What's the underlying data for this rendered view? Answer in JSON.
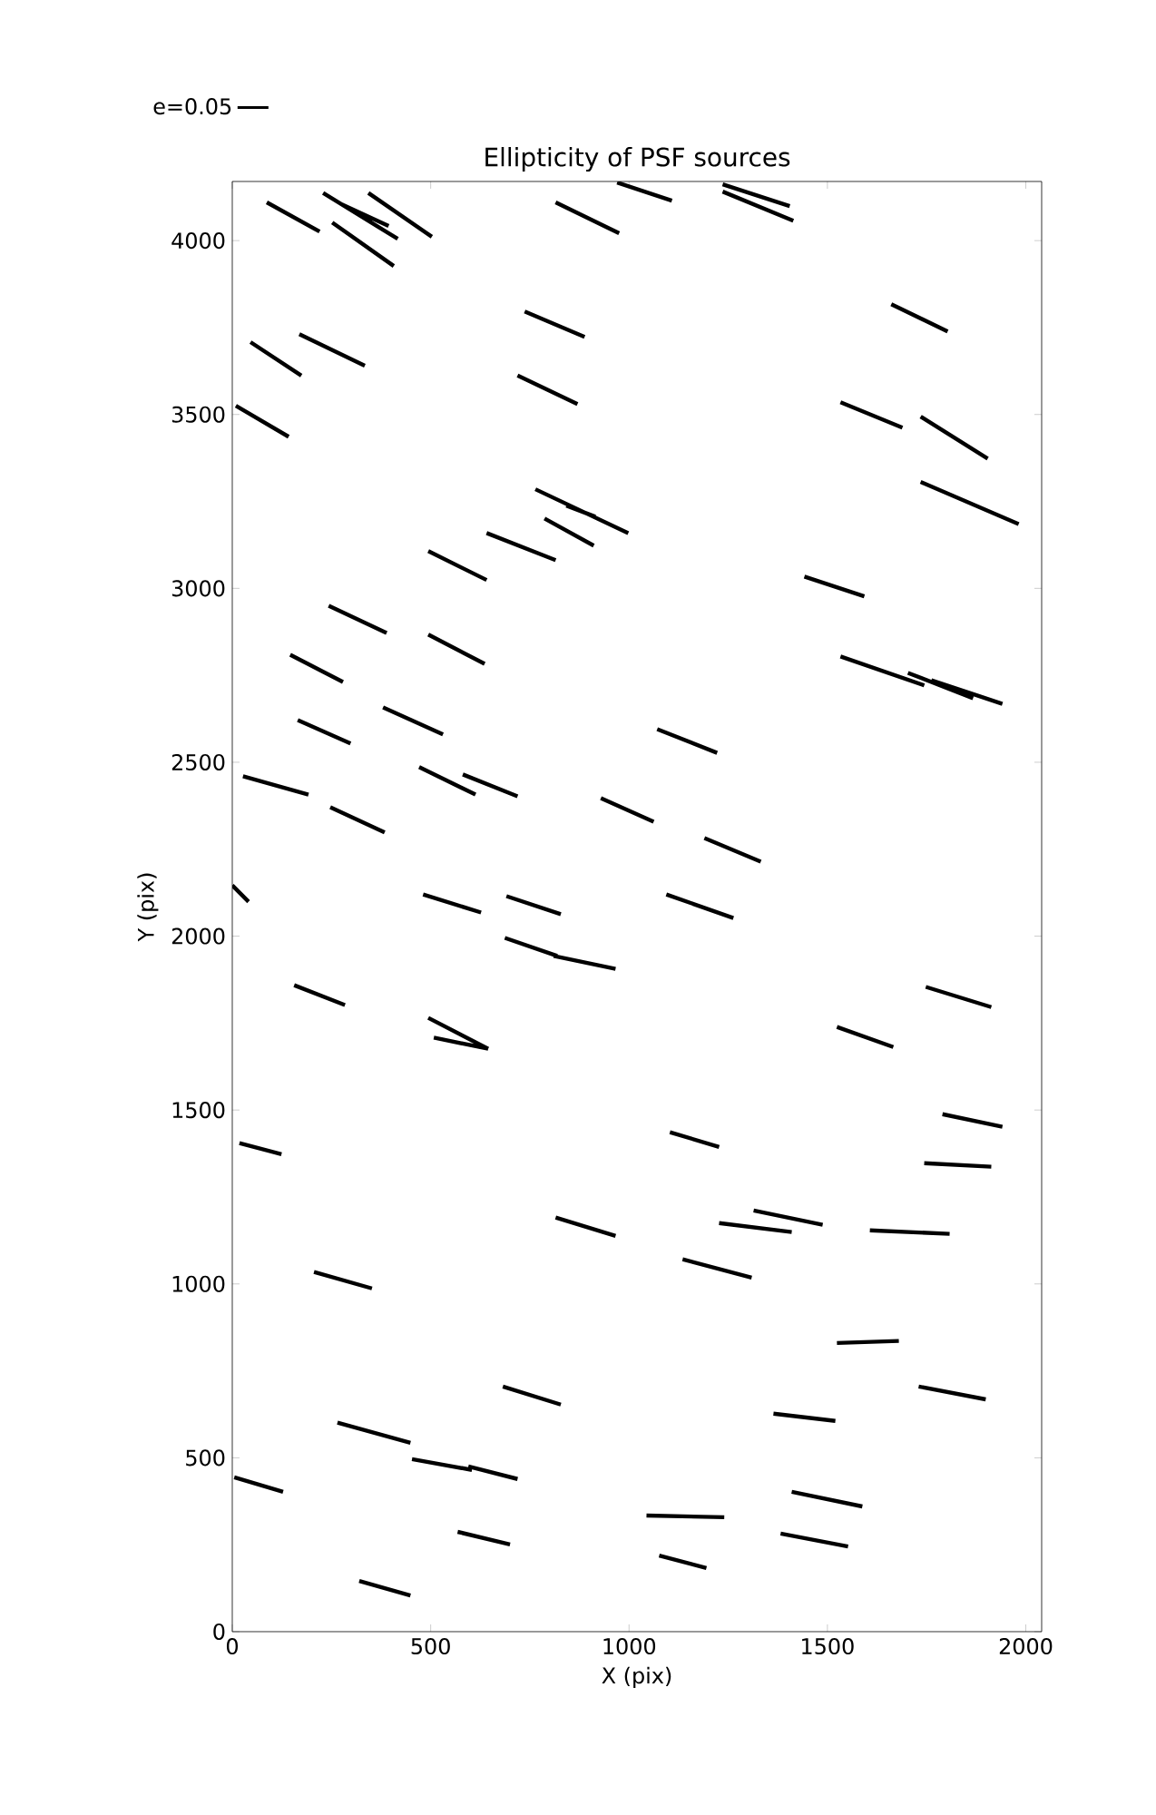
{
  "chart_data": {
    "type": "line",
    "title": "Ellipticity of PSF sources",
    "xlabel": "X (pix)",
    "ylabel": "Y (pix)",
    "xlim": [
      0,
      2040
    ],
    "ylim": [
      0,
      4170
    ],
    "xticks": [
      0,
      500,
      1000,
      1500,
      2000
    ],
    "yticks": [
      0,
      500,
      1000,
      1500,
      2000,
      2500,
      3000,
      3500,
      4000
    ],
    "legend": "top left",
    "grid": false,
    "series": [
      {
        "name": "e=0.05",
        "color": "#000000",
        "x": [
          87,
          220,
          null,
          229,
          417,
          null,
          275,
          394,
          null,
          252,
          407,
          null,
          343,
          503,
          null,
          815,
          975,
          null,
          970,
          1108,
          null,
          1236,
          1405,
          null,
          1236,
          1414,
          null,
          46,
          174,
          null,
          169,
          334,
          null,
          737,
          888,
          null,
          9,
          142,
          null,
          719,
          870,
          null,
          1661,
          1803,
          null,
          1533,
          1689,
          null,
          1735,
          1904,
          null,
          1735,
          1982,
          null,
          764,
          998,
          null,
          842,
          915,
          null,
          787,
          911,
          null,
          641,
          815,
          null,
          494,
          641,
          null,
          243,
          389,
          null,
          494,
          636,
          null,
          146,
          279,
          null,
          165,
          298,
          null,
          380,
          531,
          null,
          27,
          192,
          null,
          247,
          384,
          null,
          471,
          613,
          null,
          581,
          719,
          null,
          929,
          1062,
          null,
          0,
          41,
          null,
          481,
          627,
          null,
          691,
          828,
          null,
          1071,
          1222,
          null,
          1442,
          1593,
          null,
          1533,
          1744,
          null,
          1703,
          1867,
          null,
          1762,
          1941,
          null,
          1190,
          1332,
          null,
          1094,
          1263,
          null,
          687,
          819,
          null,
          810,
          966,
          null,
          156,
          284,
          null,
          494,
          645,
          null,
          508,
          645,
          null,
          18,
          124,
          null,
          815,
          966,
          null,
          206,
          352,
          null,
          682,
          828,
          null,
          265,
          449,
          null,
          453,
          604,
          null,
          595,
          719,
          null,
          5,
          128,
          null,
          568,
          700,
          null,
          320,
          449,
          null,
          1748,
          1913,
          null,
          1524,
          1666,
          null,
          1790,
          1941,
          null,
          1103,
          1227,
          null,
          1744,
          1913,
          null,
          1314,
          1488,
          null,
          1227,
          1410,
          null,
          1607,
          1808,
          null,
          1135,
          1309,
          null,
          1524,
          1680,
          null,
          1730,
          1899,
          null,
          1364,
          1520,
          null,
          1410,
          1588,
          null,
          1044,
          1240,
          null,
          1382,
          1552,
          null,
          1076,
          1195
        ],
        "values": [
          4110,
          4026,
          null,
          4137,
          4005,
          null,
          4105,
          4042,
          null,
          4052,
          3927,
          null,
          4137,
          4011,
          null,
          4110,
          4021,
          null,
          4167,
          4115,
          null,
          4162,
          4099,
          null,
          4141,
          4057,
          null,
          3708,
          3612,
          null,
          3731,
          3640,
          null,
          3796,
          3723,
          null,
          3525,
          3436,
          null,
          3612,
          3530,
          null,
          3817,
          3739,
          null,
          3535,
          3462,
          null,
          3494,
          3373,
          null,
          3306,
          3185,
          null,
          3285,
          3159,
          null,
          3238,
          3206,
          null,
          3201,
          3123,
          null,
          3159,
          3081,
          null,
          3107,
          3024,
          null,
          2950,
          2872,
          null,
          2867,
          2783,
          null,
          2809,
          2731,
          null,
          2621,
          2554,
          null,
          2658,
          2580,
          null,
          2460,
          2407,
          null,
          2371,
          2298,
          null,
          2486,
          2407,
          null,
          2465,
          2402,
          null,
          2397,
          2329,
          null,
          2146,
          2099,
          null,
          2120,
          2068,
          null,
          2115,
          2063,
          null,
          2595,
          2527,
          null,
          3034,
          2977,
          null,
          2804,
          2721,
          null,
          2757,
          2684,
          null,
          2736,
          2668,
          null,
          2282,
          2214,
          null,
          2120,
          2052,
          null,
          1995,
          1943,
          null,
          1943,
          1906,
          null,
          1859,
          1802,
          null,
          1765,
          1676,
          null,
          1708,
          1676,
          null,
          1405,
          1373,
          null,
          1191,
          1138,
          null,
          1034,
          987,
          null,
          705,
          653,
          null,
          601,
          543,
          null,
          496,
          465,
          null,
          475,
          439,
          null,
          444,
          402,
          null,
          287,
          251,
          null,
          146,
          104,
          null,
          1854,
          1796,
          null,
          1739,
          1681,
          null,
          1488,
          1452,
          null,
          1436,
          1394,
          null,
          1347,
          1337,
          null,
          1211,
          1170,
          null,
          1175,
          1149,
          null,
          1154,
          1144,
          null,
          1071,
          1018,
          null,
          830,
          836,
          null,
          705,
          668,
          null,
          627,
          606,
          null,
          402,
          360,
          null,
          334,
          329,
          null,
          282,
          245,
          null,
          219,
          183
        ]
      }
    ]
  }
}
